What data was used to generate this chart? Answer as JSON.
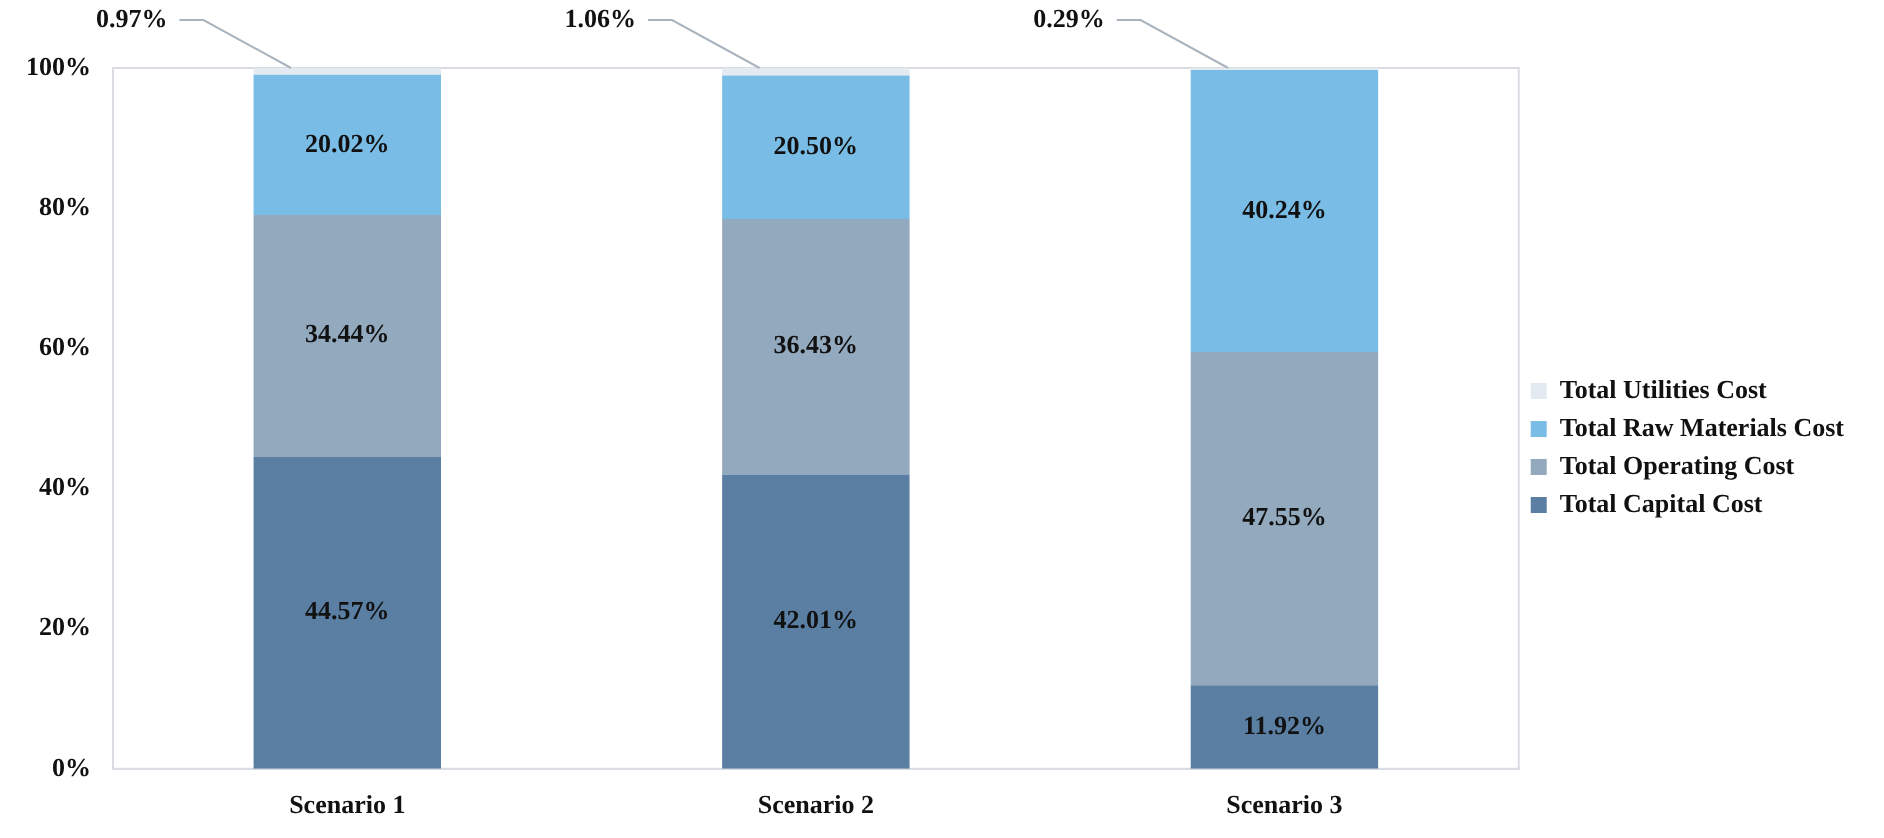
{
  "chart_data": {
    "type": "bar",
    "stacked": true,
    "categories": [
      "Scenario 1",
      "Scenario 2",
      "Scenario 3"
    ],
    "series": [
      {
        "name": "Total Capital Cost",
        "color": "#5a7fa3",
        "values": [
          44.57,
          42.01,
          11.92
        ],
        "value_labels": [
          "44.57%",
          "42.01%",
          "11.92%"
        ]
      },
      {
        "name": "Total Operating Cost",
        "color": "#93a9be",
        "values": [
          34.44,
          36.43,
          47.55
        ],
        "value_labels": [
          "34.44%",
          "36.43%",
          "47.55%"
        ]
      },
      {
        "name": "Total Raw Materials Cost",
        "color": "#79bde6",
        "values": [
          20.02,
          20.5,
          40.24
        ],
        "value_labels": [
          "20.02%",
          "20.50%",
          "40.24%"
        ]
      },
      {
        "name": "Total Utilities Cost",
        "color": "#e3eaf1",
        "values": [
          0.97,
          1.06,
          0.29
        ],
        "value_labels": [
          "0.97%",
          "1.06%",
          "0.29%"
        ]
      }
    ],
    "ylim": [
      0,
      100
    ],
    "yticks": [
      {
        "value": 0,
        "label": "0%"
      },
      {
        "value": 20,
        "label": "20%"
      },
      {
        "value": 40,
        "label": "40%"
      },
      {
        "value": 60,
        "label": "60%"
      },
      {
        "value": 80,
        "label": "80%"
      },
      {
        "value": 100,
        "label": "100%"
      }
    ],
    "grid": false,
    "legend": "right"
  }
}
